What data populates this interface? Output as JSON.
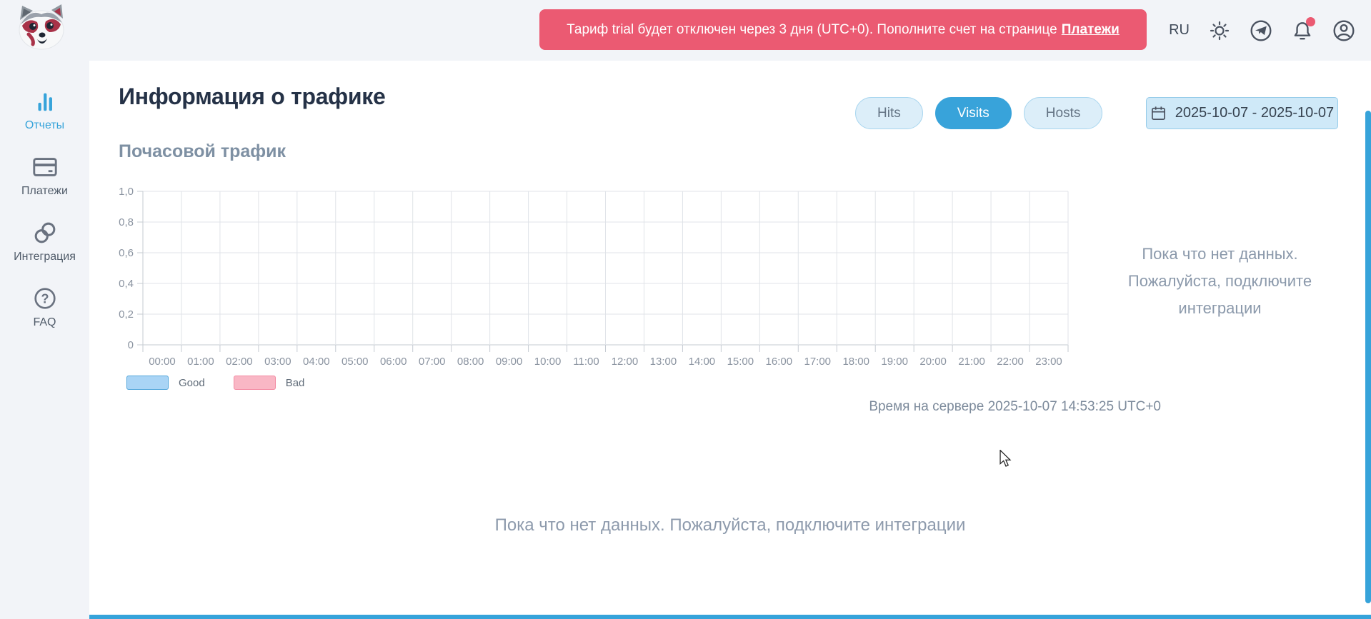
{
  "header": {
    "banner": {
      "message": "Тариф trial будет отключен через 3 дня (UTC+0). Пополните счет на странице",
      "link_label": "Платежи"
    },
    "language_label": "RU",
    "icons": [
      {
        "name": "theme-sun-icon"
      },
      {
        "name": "telegram-icon"
      },
      {
        "name": "notifications-bell-icon",
        "badge": true
      },
      {
        "name": "profile-icon"
      }
    ]
  },
  "sidebar": {
    "items": [
      {
        "label": "Отчеты",
        "icon": "bar-chart-icon",
        "active": true
      },
      {
        "label": "Платежи",
        "icon": "credit-card-icon",
        "active": false
      },
      {
        "label": "Интеграция",
        "icon": "link-icon",
        "active": false
      },
      {
        "label": "FAQ",
        "icon": "question-circle-icon",
        "active": false
      }
    ]
  },
  "main": {
    "title": "Информация о трафике",
    "view_buttons": [
      {
        "label": "Hits",
        "active": false
      },
      {
        "label": "Visits",
        "active": true
      },
      {
        "label": "Hosts",
        "active": false
      }
    ],
    "date_range": "2025-10-07 - 2025-10-07",
    "section_title": "Почасовой трафик",
    "side_empty_text": "Пока что нет данных. Пожалуйста, подключите интеграции",
    "server_time_text": "Время на сервере 2025-10-07 14:53:25 UTC+0",
    "bottom_empty_text": "Пока что нет данных. Пожалуйста, подключите интеграции"
  },
  "colors": {
    "accent_blue": "#36a3da",
    "banner_pink": "#eb5a72",
    "grid_line": "#e0e3e8",
    "axis_line": "#c6cbd2",
    "tick_label": "#8a93a0"
  },
  "chart_data": {
    "type": "line",
    "title": "Почасовой трафик",
    "categories": [
      "00:00",
      "01:00",
      "02:00",
      "03:00",
      "04:00",
      "05:00",
      "06:00",
      "07:00",
      "08:00",
      "09:00",
      "10:00",
      "11:00",
      "12:00",
      "13:00",
      "14:00",
      "15:00",
      "16:00",
      "17:00",
      "18:00",
      "19:00",
      "20:00",
      "21:00",
      "22:00",
      "23:00"
    ],
    "series": [
      {
        "name": "Good",
        "values": []
      },
      {
        "name": "Bad",
        "values": []
      }
    ],
    "ylim": [
      0,
      1
    ],
    "y_ticks": [
      "1,0",
      "0,8",
      "0,6",
      "0,4",
      "0,2",
      "0"
    ],
    "grid": true,
    "legend_position": "bottom-left",
    "empty": true,
    "colors": {
      "good_fill": "#a9d4f5",
      "good_border": "#54a7db",
      "bad_fill": "#f9b7c5",
      "bad_border": "#f38ba3"
    }
  }
}
